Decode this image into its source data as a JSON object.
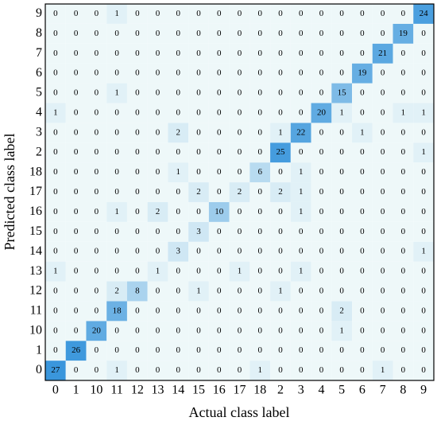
{
  "chart_data": {
    "type": "heatmap",
    "x_label": "Actual class label",
    "y_label": "Predicted class label",
    "x_categories": [
      "0",
      "1",
      "10",
      "11",
      "12",
      "13",
      "14",
      "15",
      "16",
      "17",
      "18",
      "2",
      "3",
      "4",
      "5",
      "6",
      "7",
      "8",
      "9"
    ],
    "y_categories": [
      "0",
      "1",
      "10",
      "11",
      "12",
      "13",
      "14",
      "15",
      "16",
      "17",
      "18",
      "2",
      "3",
      "4",
      "5",
      "6",
      "7",
      "8",
      "9"
    ],
    "color_low": "#eef8f9",
    "color_high": "#3a96dc",
    "z": [
      [
        27,
        0,
        0,
        1,
        0,
        0,
        0,
        0,
        0,
        0,
        1,
        0,
        0,
        0,
        0,
        0,
        1,
        0,
        0
      ],
      [
        0,
        26,
        0,
        0,
        0,
        0,
        0,
        0,
        0,
        0,
        0,
        0,
        0,
        0,
        0,
        0,
        0,
        0,
        0
      ],
      [
        0,
        0,
        20,
        0,
        0,
        0,
        0,
        0,
        0,
        0,
        0,
        0,
        0,
        0,
        1,
        0,
        0,
        0,
        0
      ],
      [
        0,
        0,
        0,
        18,
        0,
        0,
        0,
        0,
        0,
        0,
        0,
        0,
        0,
        0,
        2,
        0,
        0,
        0,
        0
      ],
      [
        0,
        0,
        0,
        2,
        8,
        0,
        0,
        1,
        0,
        0,
        0,
        1,
        0,
        0,
        0,
        0,
        0,
        0,
        0
      ],
      [
        1,
        0,
        0,
        0,
        0,
        1,
        0,
        0,
        0,
        1,
        0,
        0,
        1,
        0,
        0,
        0,
        0,
        0,
        0
      ],
      [
        0,
        0,
        0,
        0,
        0,
        0,
        3,
        0,
        0,
        0,
        0,
        0,
        0,
        0,
        0,
        0,
        0,
        0,
        1
      ],
      [
        0,
        0,
        0,
        0,
        0,
        0,
        0,
        3,
        0,
        0,
        0,
        0,
        0,
        0,
        0,
        0,
        0,
        0,
        0
      ],
      [
        0,
        0,
        0,
        1,
        0,
        2,
        0,
        0,
        10,
        0,
        0,
        0,
        1,
        0,
        0,
        0,
        0,
        0,
        0
      ],
      [
        0,
        0,
        0,
        0,
        0,
        0,
        0,
        2,
        0,
        2,
        0,
        2,
        1,
        0,
        0,
        0,
        0,
        0,
        0
      ],
      [
        0,
        0,
        0,
        0,
        0,
        0,
        1,
        0,
        0,
        0,
        6,
        0,
        1,
        0,
        0,
        0,
        0,
        0,
        0
      ],
      [
        0,
        0,
        0,
        0,
        0,
        0,
        0,
        0,
        0,
        0,
        0,
        25,
        0,
        0,
        0,
        0,
        0,
        0,
        1
      ],
      [
        0,
        0,
        0,
        0,
        0,
        0,
        2,
        0,
        0,
        0,
        0,
        1,
        22,
        0,
        0,
        1,
        0,
        0,
        0
      ],
      [
        1,
        0,
        0,
        0,
        0,
        0,
        0,
        0,
        0,
        0,
        0,
        0,
        0,
        20,
        1,
        0,
        0,
        1,
        1
      ],
      [
        0,
        0,
        0,
        1,
        0,
        0,
        0,
        0,
        0,
        0,
        0,
        0,
        0,
        0,
        15,
        0,
        0,
        0,
        0
      ],
      [
        0,
        0,
        0,
        0,
        0,
        0,
        0,
        0,
        0,
        0,
        0,
        0,
        0,
        0,
        0,
        19,
        0,
        0,
        0
      ],
      [
        0,
        0,
        0,
        0,
        0,
        0,
        0,
        0,
        0,
        0,
        0,
        0,
        0,
        0,
        0,
        0,
        21,
        0,
        0
      ],
      [
        0,
        0,
        0,
        0,
        0,
        0,
        0,
        0,
        0,
        0,
        0,
        0,
        0,
        0,
        0,
        0,
        0,
        19,
        0
      ],
      [
        0,
        0,
        0,
        1,
        0,
        0,
        0,
        0,
        0,
        0,
        0,
        0,
        0,
        0,
        0,
        0,
        0,
        0,
        24
      ]
    ]
  }
}
